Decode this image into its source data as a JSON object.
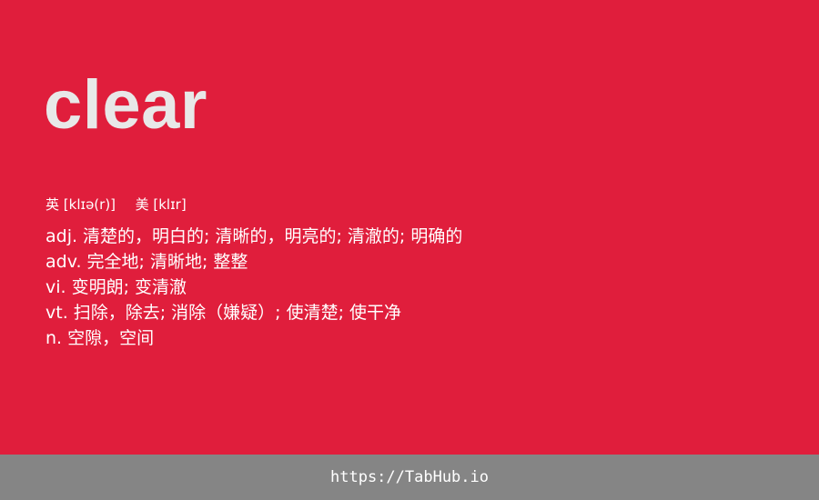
{
  "entry": {
    "word": "clear",
    "pronunciation": {
      "uk_label": "英",
      "uk_ipa": "[klɪə(r)]",
      "us_label": "美",
      "us_ipa": "[klɪr]"
    },
    "definitions": [
      {
        "pos": "adj.",
        "meaning": "清楚的，明白的; 清晰的，明亮的; 清澈的; 明确的"
      },
      {
        "pos": "adv.",
        "meaning": "完全地; 清晰地; 整整"
      },
      {
        "pos": "vi.",
        "meaning": "变明朗; 变清澈"
      },
      {
        "pos": "vt.",
        "meaning": "扫除，除去; 消除（嫌疑）; 使清楚; 使干净"
      },
      {
        "pos": "n.",
        "meaning": "空隙，空间"
      }
    ]
  },
  "footer": {
    "link_text": "https://TabHub.io"
  },
  "colors": {
    "background": "#E01E3C",
    "word": "#E8E8E8",
    "text": "#FFFFFF",
    "footer_bg": "#858585"
  }
}
